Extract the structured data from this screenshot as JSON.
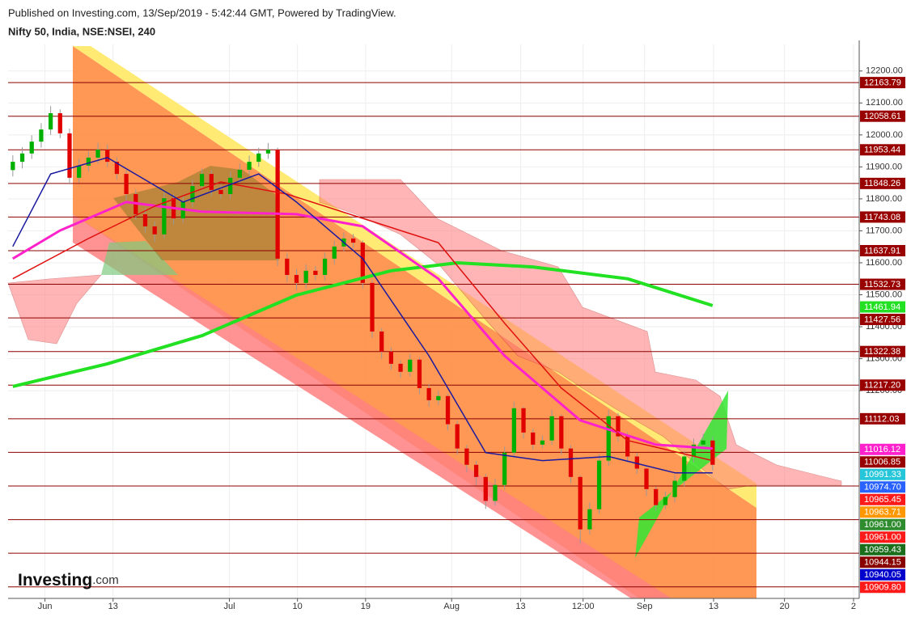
{
  "header": {
    "published": "Published on Investing.com, 13/Sep/2019 - 5:42:44 GMT, Powered by TradingView.",
    "symbol": "Nifty 50, India, NSE:NSEI, 240",
    "logo_main": "Investing",
    "logo_suffix": ".com"
  },
  "chart_data": {
    "type": "candlestick",
    "up_color": "#00b000",
    "down_color": "#e00000",
    "xlim": [
      -0.5,
      89.5
    ],
    "ylim": [
      10550,
      12283
    ],
    "xticks": [
      {
        "value": 3.4,
        "label": "Jun"
      },
      {
        "value": 10.6,
        "label": "13"
      },
      {
        "value": 22.9,
        "label": "Jul"
      },
      {
        "value": 30.1,
        "label": "10"
      },
      {
        "value": 37.3,
        "label": "19"
      },
      {
        "value": 46.4,
        "label": "Aug"
      },
      {
        "value": 53.7,
        "label": "13"
      },
      {
        "value": 60.3,
        "label": "12:00"
      },
      {
        "value": 66.8,
        "label": "Sep"
      },
      {
        "value": 74.1,
        "label": "13"
      },
      {
        "value": 81.6,
        "label": "20"
      },
      {
        "value": 88.9,
        "label": "2"
      }
    ],
    "yticks": [
      {
        "value": 12200,
        "label": "12200.00"
      },
      {
        "value": 12100,
        "label": "12100.00"
      },
      {
        "value": 12000,
        "label": "12000.00"
      },
      {
        "value": 11900,
        "label": "11900.00"
      },
      {
        "value": 11800,
        "label": "11800.00"
      },
      {
        "value": 11700,
        "label": "11700.00"
      },
      {
        "value": 11600,
        "label": "11600.00"
      },
      {
        "value": 11500,
        "label": "11500.00"
      },
      {
        "value": 11400,
        "label": "11400.00"
      },
      {
        "value": 11300,
        "label": "11300.00"
      },
      {
        "value": 11200,
        "label": "11200.00"
      }
    ],
    "open": [
      11890,
      11916,
      11942,
      11979,
      12017,
      12068,
      12005,
      11866,
      11904,
      11929,
      11954,
      11916,
      11878,
      11815,
      11752,
      11714,
      11689,
      11802,
      11739,
      11790,
      11840,
      11878,
      11828,
      11815,
      11866,
      11891,
      11916,
      11942,
      11954,
      11613,
      11562,
      11537,
      11575,
      11562,
      11613,
      11651,
      11676,
      11663,
      11537,
      11385,
      11322,
      11284,
      11259,
      11297,
      11208,
      11170,
      11183,
      11095,
      11019,
      10968,
      10930,
      10855,
      10905,
      11006,
      11145,
      11069,
      11031,
      11044,
      11120,
      11019,
      10930,
      10766,
      10829,
      10981,
      11120,
      11057,
      10994,
      10956,
      10892,
      10842,
      10867,
      10918,
      10994,
      11031,
      11044
    ],
    "high": [
      11936,
      11962,
      11999,
      12037,
      12090,
      12080,
      12020,
      11924,
      11950,
      11975,
      11970,
      11930,
      11890,
      11830,
      11770,
      11730,
      11820,
      11815,
      11810,
      11860,
      11895,
      11890,
      11845,
      11885,
      11910,
      11935,
      11960,
      11975,
      11960,
      11630,
      11580,
      11595,
      11590,
      11630,
      11670,
      11695,
      11690,
      11670,
      11545,
      11395,
      11335,
      11295,
      11315,
      11305,
      11220,
      11200,
      11190,
      11105,
      11030,
      10980,
      10940,
      10925,
      11025,
      11165,
      11150,
      11080,
      11060,
      11140,
      11125,
      11030,
      10935,
      10850,
      11000,
      11140,
      11130,
      11070,
      11005,
      10965,
      10900,
      10885,
      10935,
      11010,
      11050,
      11065,
      11055
    ],
    "low": [
      11870,
      11895,
      11925,
      11960,
      12000,
      11990,
      11845,
      11850,
      11885,
      11910,
      11900,
      11860,
      11795,
      11735,
      11695,
      11665,
      11675,
      11720,
      11725,
      11775,
      11825,
      11810,
      11800,
      11800,
      11850,
      11875,
      11900,
      11925,
      11590,
      11540,
      11515,
      11520,
      11545,
      11545,
      11595,
      11635,
      11645,
      11520,
      11365,
      11300,
      11265,
      11240,
      11245,
      11190,
      11150,
      11155,
      11075,
      11000,
      10945,
      10905,
      10830,
      10840,
      10890,
      10990,
      11050,
      11015,
      11020,
      11030,
      11000,
      10910,
      10720,
      10750,
      10815,
      10965,
      11040,
      10975,
      10940,
      10870,
      10825,
      10830,
      10850,
      10900,
      10975,
      11015,
      10950
    ],
    "close": [
      11916,
      11942,
      11979,
      12017,
      12068,
      12005,
      11866,
      11904,
      11929,
      11954,
      11916,
      11878,
      11815,
      11752,
      11714,
      11689,
      11802,
      11739,
      11790,
      11840,
      11878,
      11828,
      11815,
      11866,
      11891,
      11916,
      11942,
      11954,
      11613,
      11562,
      11537,
      11575,
      11562,
      11613,
      11651,
      11676,
      11663,
      11537,
      11385,
      11322,
      11284,
      11259,
      11297,
      11208,
      11170,
      11183,
      11095,
      11019,
      10968,
      10930,
      10855,
      10905,
      11006,
      11145,
      11069,
      11031,
      11044,
      11120,
      11019,
      10930,
      10766,
      10829,
      10981,
      11120,
      11057,
      10994,
      10956,
      10892,
      10842,
      10867,
      10918,
      10994,
      11031,
      11044,
      10968
    ],
    "series": [
      {
        "color": "#22e022",
        "width": 4,
        "x": [
          0,
          10,
          20,
          30,
          40,
          47,
          55,
          65,
          74
        ],
        "values": [
          11213,
          11284,
          11372,
          11499,
          11575,
          11600,
          11587,
          11550,
          11466
        ]
      },
      {
        "color": "#ff22cc",
        "width": 3,
        "x": [
          0,
          5,
          12,
          20,
          30,
          37,
          45,
          52,
          60,
          68,
          74
        ],
        "values": [
          11613,
          11701,
          11790,
          11760,
          11752,
          11714,
          11550,
          11309,
          11107,
          11031,
          11019
        ]
      },
      {
        "color": "#e01010",
        "width": 1.5,
        "x": [
          0,
          8,
          15,
          22,
          29,
          37,
          45,
          52,
          58,
          65,
          74
        ],
        "values": [
          11550,
          11676,
          11777,
          11853,
          11815,
          11739,
          11663,
          11411,
          11208,
          11044,
          10981
        ]
      },
      {
        "color": "#1a1aa0",
        "width": 1.5,
        "x": [
          0,
          4,
          10,
          18,
          26,
          30,
          37,
          44,
          50,
          56,
          63,
          70,
          74
        ],
        "values": [
          11651,
          11878,
          11929,
          11790,
          11878,
          11790,
          11613,
          11309,
          11006,
          10981,
          10994,
          10943,
          10943
        ]
      }
    ],
    "levels": [
      12163.79,
      12058.61,
      11953.44,
      11848.26,
      11743.08,
      11637.91,
      11532.73,
      11427.56,
      11322.38,
      11217.2,
      11112.03,
      11006.85,
      10901.67,
      10796.49,
      10691.32,
      10586.14
    ],
    "price_tags": [
      {
        "value": 12163.79,
        "label": "12163.79",
        "color": "#990000"
      },
      {
        "value": 12058.61,
        "label": "12058.61",
        "color": "#990000"
      },
      {
        "value": 11953.44,
        "label": "11953.44",
        "color": "#990000"
      },
      {
        "value": 11848.26,
        "label": "11848.26",
        "color": "#990000"
      },
      {
        "value": 11743.08,
        "label": "11743.08",
        "color": "#990000"
      },
      {
        "value": 11637.91,
        "label": "11637.91",
        "color": "#990000"
      },
      {
        "value": 11532.73,
        "label": "11532.73",
        "color": "#990000"
      },
      {
        "value": 11461.94,
        "label": "11461.94",
        "color": "#22e022"
      },
      {
        "value": 11427.56,
        "label": "11427.56",
        "color": "#990000"
      },
      {
        "value": 11322.38,
        "label": "11322.38",
        "color": "#990000"
      },
      {
        "value": 11217.2,
        "label": "11217.20",
        "color": "#990000"
      },
      {
        "value": 11112.03,
        "label": "11112.03",
        "color": "#990000"
      },
      {
        "value": 11016.12,
        "label": "11016.12",
        "color": "#ff22cc"
      },
      {
        "value": 11006.85,
        "label": "11006.85",
        "color": "#990000"
      },
      {
        "value": 10991.33,
        "label": "10991.33",
        "color": "#26c6da"
      },
      {
        "value": 10974.7,
        "label": "10974.70",
        "color": "#2962ff"
      },
      {
        "value": 10965.45,
        "label": "10965.45",
        "color": "#ff1a1a"
      },
      {
        "value": 10963.71,
        "label": "10963.71",
        "color": "#ff9800"
      },
      {
        "value": 10961.0,
        "label": "10961.00",
        "color": "#2e8b2e"
      },
      {
        "value": 10961.0,
        "label": "10961.00",
        "color": "#ff1a1a"
      },
      {
        "value": 10959.43,
        "label": "10959.43",
        "color": "#1b6e1b"
      },
      {
        "value": 10944.15,
        "label": "10944.15",
        "color": "#880000"
      },
      {
        "value": 10940.05,
        "label": "10940.05",
        "color": "#0000cc"
      },
      {
        "value": 10909.8,
        "label": "10909.80",
        "color": "#ff1a1a"
      }
    ]
  }
}
